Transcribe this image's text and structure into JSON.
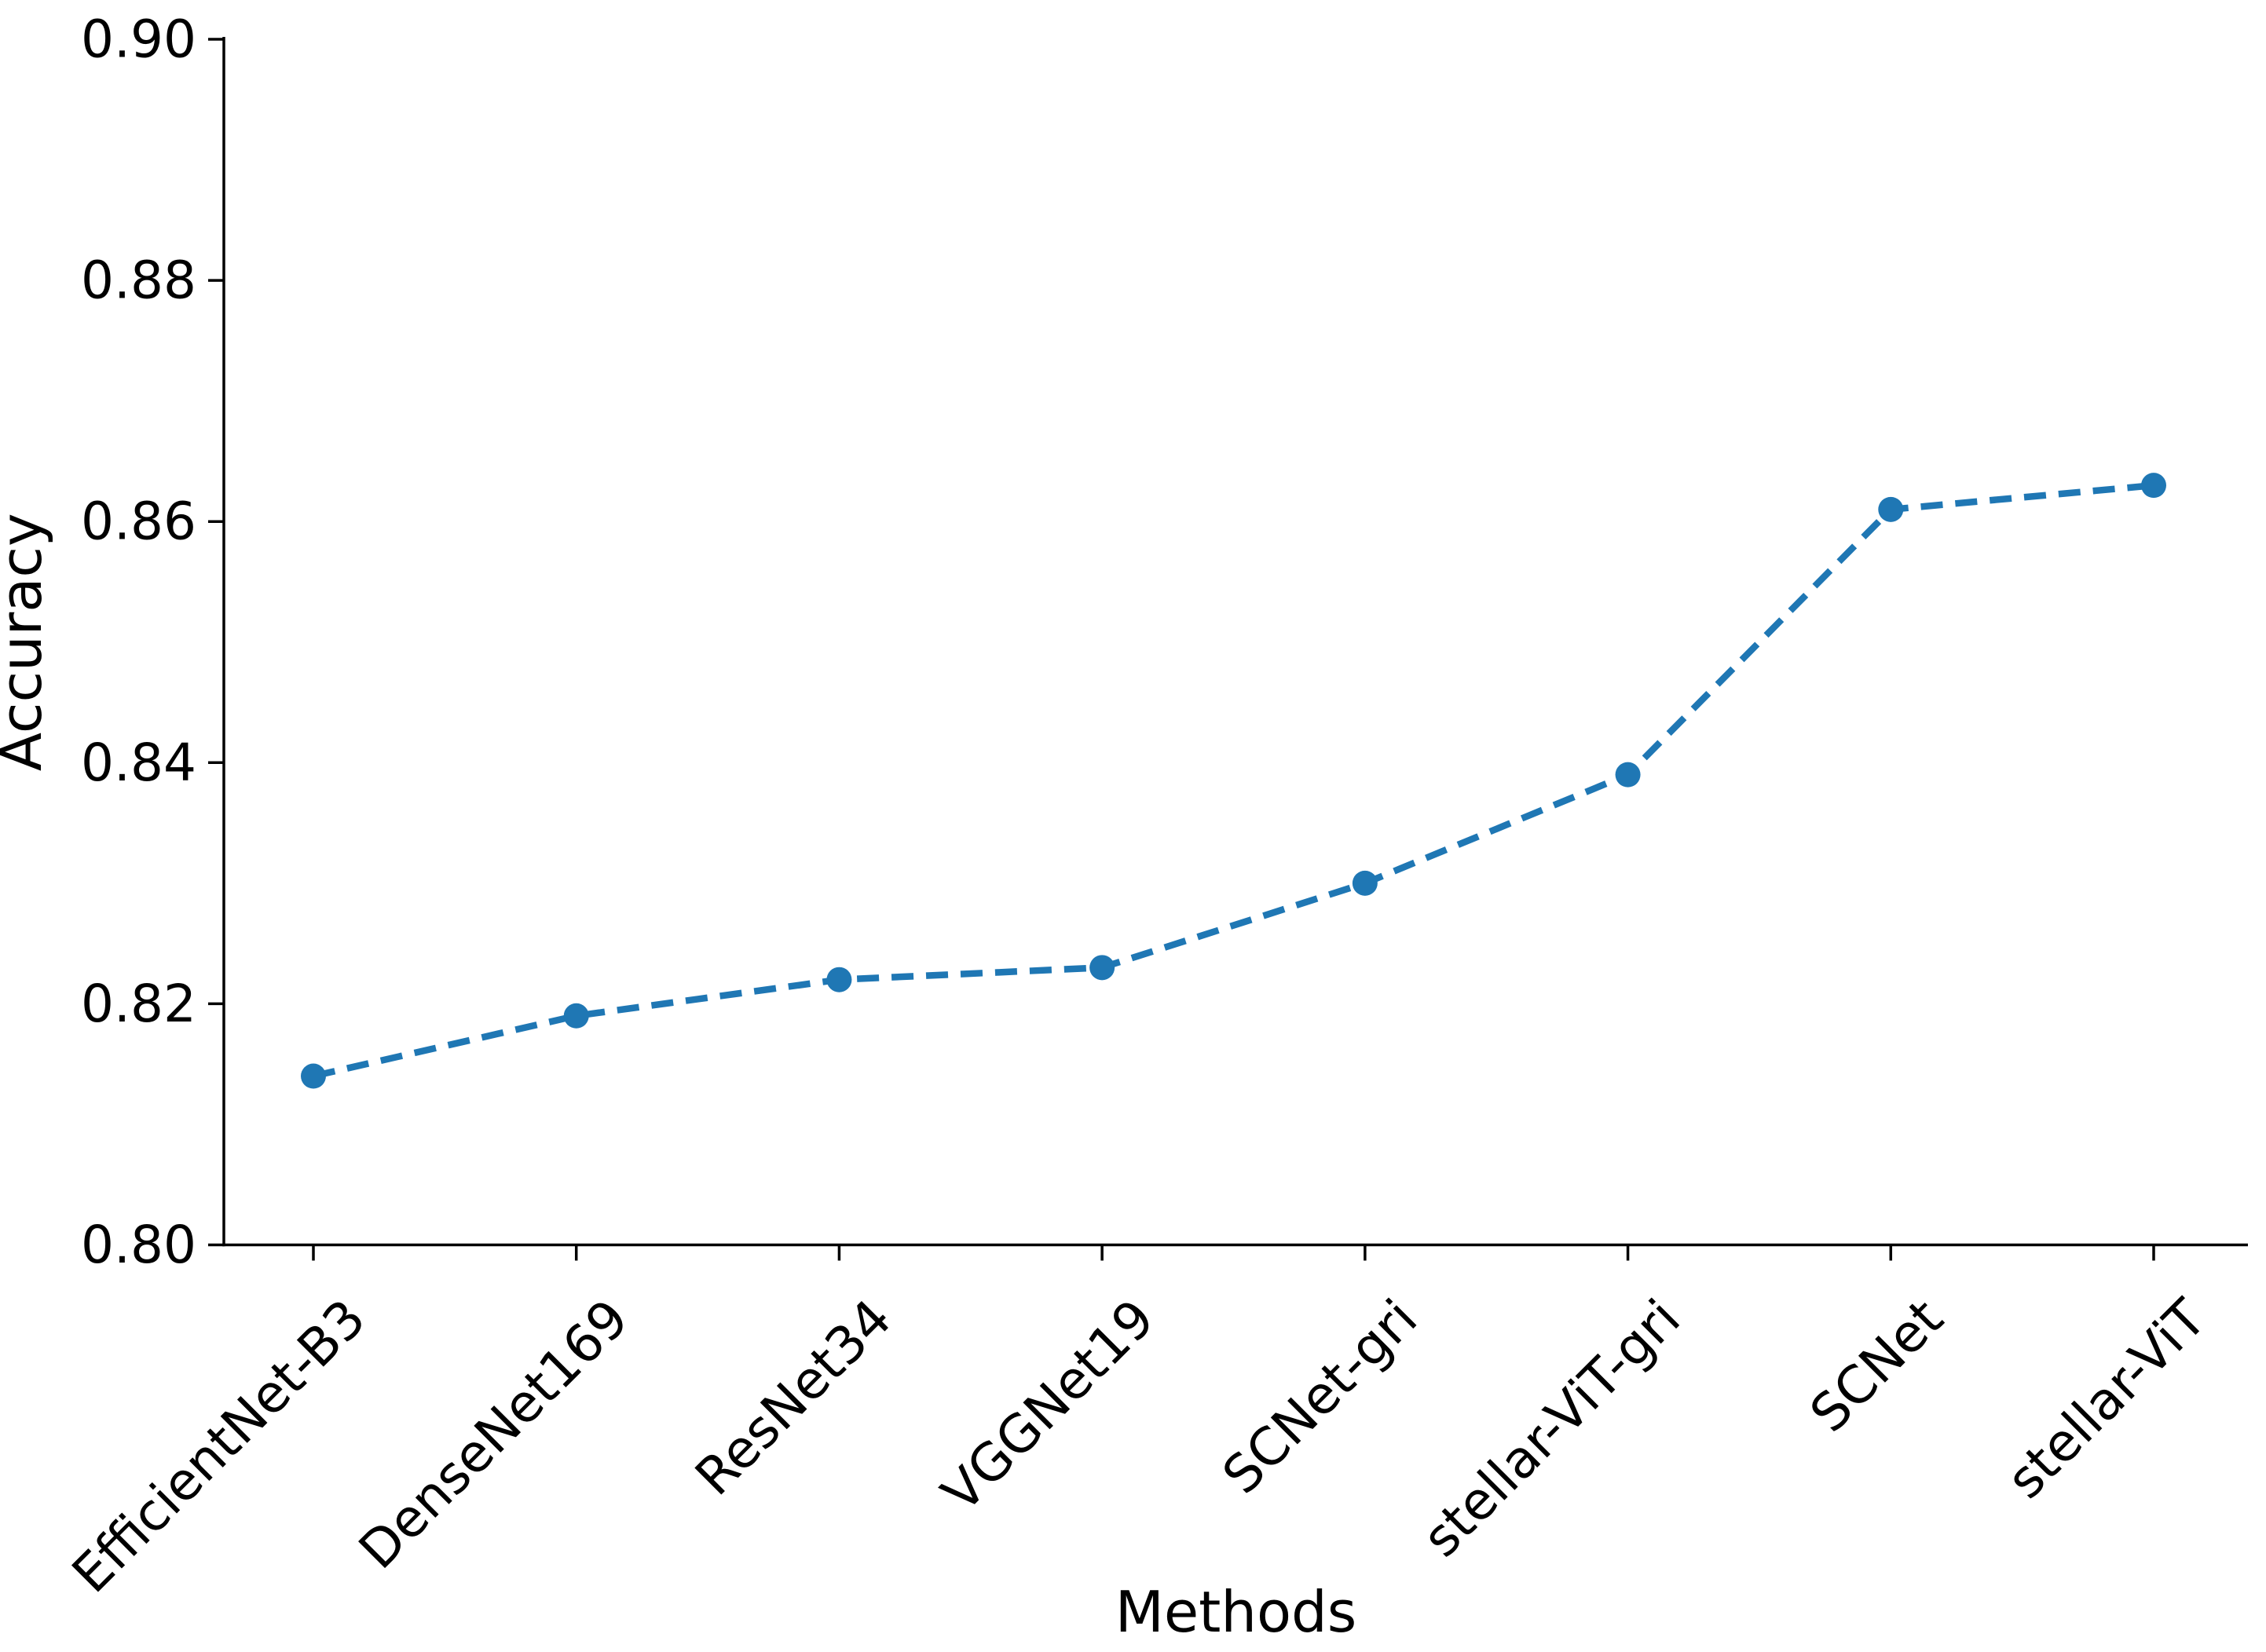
{
  "figure": {
    "background": "#ffffff",
    "axis_color": "#000000",
    "accent_color": "#1f77b4"
  },
  "chart_data": {
    "type": "line",
    "title": "",
    "xlabel": "Methods",
    "ylabel": "Accuracy",
    "categories": [
      "EfficientNet-B3",
      "DenseNet169",
      "ResNet34",
      "VGGNet19",
      "SCNet-gri",
      "stellar-ViT-gri",
      "SCNet",
      "stellar-ViT"
    ],
    "series": [
      {
        "name": "Accuracy",
        "color": "#1f77b4",
        "line_style": "dashed",
        "marker": "circle",
        "values": [
          0.814,
          0.819,
          0.822,
          0.823,
          0.83,
          0.839,
          0.861,
          0.863
        ]
      }
    ],
    "ylim": [
      0.8,
      0.9
    ],
    "yticks": [
      0.8,
      0.82,
      0.84,
      0.86,
      0.88,
      0.9
    ],
    "ytick_labels": [
      "0.80",
      "0.82",
      "0.84",
      "0.86",
      "0.88",
      "0.90"
    ],
    "xtick_rotation_deg": 45,
    "grid": false,
    "legend_position": "none"
  }
}
